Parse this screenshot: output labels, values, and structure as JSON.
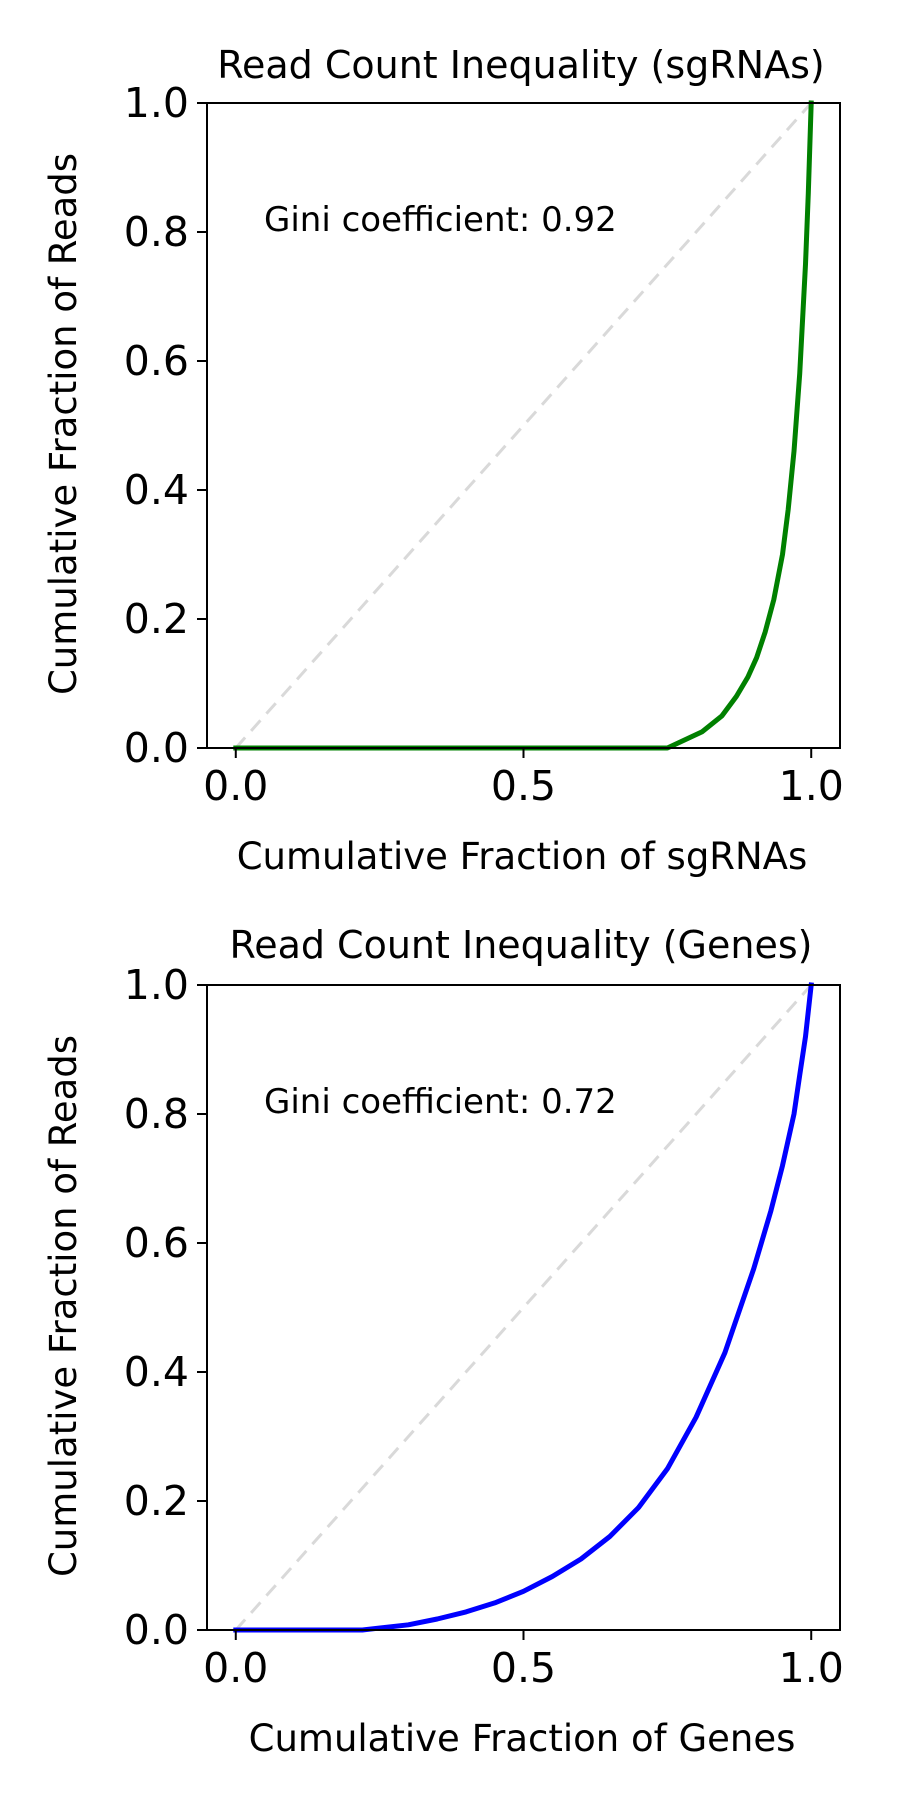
{
  "chart_data": [
    {
      "type": "line",
      "title": "Read Count Inequality (sgRNAs)",
      "xlabel": "Cumulative Fraction of sgRNAs",
      "ylabel": "Cumulative Fraction of Reads",
      "xlim": [
        -0.05,
        1.05
      ],
      "ylim": [
        0.0,
        1.0
      ],
      "xticks": [
        0.0,
        0.5,
        1.0
      ],
      "xtick_labels": [
        "0.0",
        "0.5",
        "1.0"
      ],
      "yticks": [
        0.0,
        0.2,
        0.4,
        0.6,
        0.8,
        1.0
      ],
      "ytick_labels": [
        "0.0",
        "0.2",
        "0.4",
        "0.6",
        "0.8",
        "1.0"
      ],
      "grid": false,
      "annotation": "Gini coefficient: 0.92",
      "series": [
        {
          "name": "Lorenz curve (sgRNAs)",
          "color": "#008000",
          "style": "solid",
          "x": [
            0.0,
            0.75,
            0.81,
            0.845,
            0.87,
            0.89,
            0.905,
            0.92,
            0.935,
            0.95,
            0.96,
            0.97,
            0.98,
            0.99,
            0.995,
            1.0
          ],
          "y": [
            0.0,
            0.0,
            0.025,
            0.05,
            0.08,
            0.11,
            0.14,
            0.18,
            0.23,
            0.3,
            0.37,
            0.46,
            0.58,
            0.75,
            0.86,
            1.0
          ]
        },
        {
          "name": "Line of equality",
          "color": "#d9d9d9",
          "style": "dashed",
          "x": [
            0.0,
            1.0
          ],
          "y": [
            0.0,
            1.0
          ]
        }
      ]
    },
    {
      "type": "line",
      "title": "Read Count Inequality (Genes)",
      "xlabel": "Cumulative Fraction of Genes",
      "ylabel": "Cumulative Fraction of Reads",
      "xlim": [
        -0.05,
        1.05
      ],
      "ylim": [
        0.0,
        1.0
      ],
      "xticks": [
        0.0,
        0.5,
        1.0
      ],
      "xtick_labels": [
        "0.0",
        "0.5",
        "1.0"
      ],
      "yticks": [
        0.0,
        0.2,
        0.4,
        0.6,
        0.8,
        1.0
      ],
      "ytick_labels": [
        "0.0",
        "0.2",
        "0.4",
        "0.6",
        "0.8",
        "1.0"
      ],
      "grid": false,
      "annotation": "Gini coefficient: 0.72",
      "series": [
        {
          "name": "Lorenz curve (Genes)",
          "color": "#0000ff",
          "style": "solid",
          "x": [
            0.0,
            0.22,
            0.3,
            0.35,
            0.4,
            0.45,
            0.5,
            0.55,
            0.6,
            0.65,
            0.7,
            0.75,
            0.8,
            0.85,
            0.9,
            0.93,
            0.95,
            0.97,
            0.98,
            0.99,
            1.0
          ],
          "y": [
            0.0,
            0.0,
            0.008,
            0.017,
            0.028,
            0.042,
            0.06,
            0.083,
            0.11,
            0.145,
            0.19,
            0.25,
            0.33,
            0.43,
            0.56,
            0.65,
            0.72,
            0.8,
            0.86,
            0.92,
            1.0
          ]
        },
        {
          "name": "Line of equality",
          "color": "#d9d9d9",
          "style": "dashed",
          "x": [
            0.0,
            1.0
          ],
          "y": [
            0.0,
            1.0
          ]
        }
      ]
    }
  ]
}
